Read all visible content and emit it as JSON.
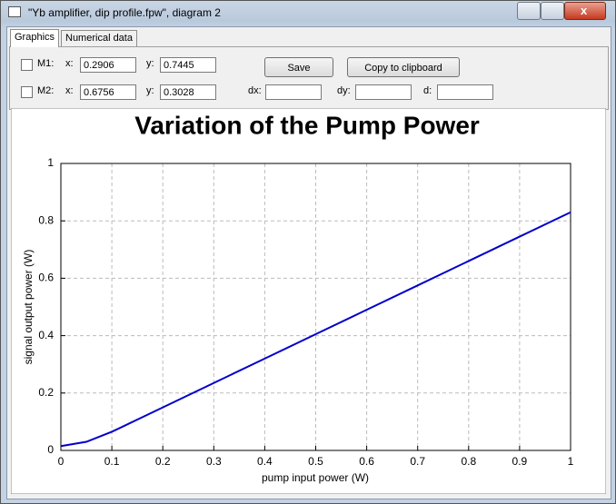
{
  "window": {
    "title": "\"Yb amplifier, dip profile.fpw\", diagram 2"
  },
  "tabs": [
    "Graphics",
    "Numerical data"
  ],
  "markers": [
    {
      "label": "M1:",
      "x_label": "x:",
      "x": "0.2906",
      "y_label": "y:",
      "y": "0.7445"
    },
    {
      "label": "M2:",
      "x_label": "x:",
      "x": "0.6756",
      "y_label": "y:",
      "y": "0.3028"
    }
  ],
  "deltas": {
    "dx_label": "dx:",
    "dy_label": "dy:",
    "d_label": "d:"
  },
  "buttons": [
    "Save",
    "Copy to clipboard"
  ],
  "chart_data": {
    "type": "line",
    "title": "Variation of the Pump Power",
    "x_label": "pump input power (W)",
    "y_label": "signal output power (W)",
    "x": [
      0,
      0.05,
      0.1,
      0.2,
      0.3,
      0.4,
      0.5,
      0.6,
      0.7,
      0.8,
      0.9,
      1
    ],
    "series": [
      {
        "color": "#0000cc",
        "values": [
          0.015,
          0.03,
          0.065,
          0.15,
          0.235,
          0.32,
          0.405,
          0.49,
          0.575,
          0.66,
          0.745,
          0.83
        ]
      }
    ],
    "xlim": [
      0,
      1
    ],
    "ylim": [
      0,
      1
    ],
    "xticks": [
      0,
      0.1,
      0.2,
      0.3,
      0.4,
      0.5,
      0.6,
      0.7,
      0.8,
      0.9,
      1
    ],
    "yticks": [
      0,
      0.2,
      0.4,
      0.6,
      0.8,
      1
    ],
    "grid": true
  }
}
